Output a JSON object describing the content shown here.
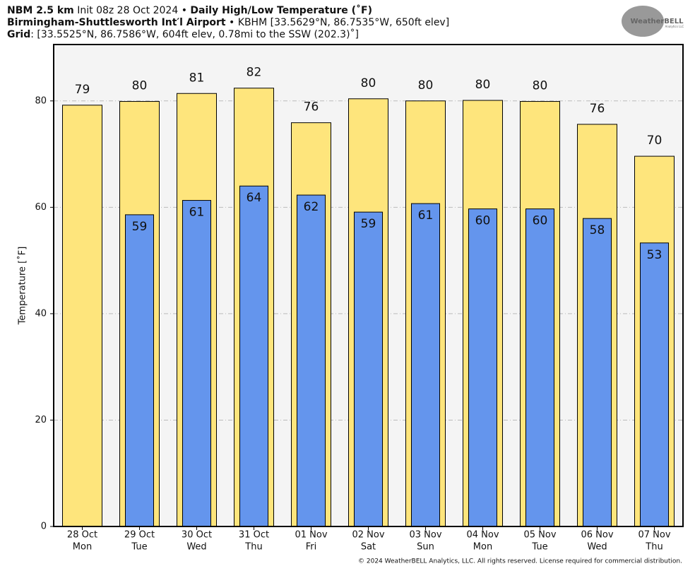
{
  "chart_data": {
    "type": "bar",
    "header": [
      [
        "NBM 2.5 km",
        "Init 08z 28 Oct 2024",
        "•",
        "Daily High/Low Temperature (˚F)"
      ],
      [
        "Birmingham-Shuttlesworth Int′l Airport",
        "•",
        "KBHM [33.5629°N, 86.7535°W, 650ft elev]"
      ],
      [
        "Grid",
        ": [33.5525°N, 86.7586°W, 604ft elev, 0.78mi to the SSW (202.3)˚]"
      ]
    ],
    "logo": "WeatherBELL",
    "logo_sub": "Analytics LLC",
    "footer": "© 2024 WeatherBELL Analytics, LLC. All rights reserved. License required for commercial distribution.",
    "ylabel": "Temperature [˚F]",
    "categories": [
      "28 Oct",
      "29 Oct",
      "30 Oct",
      "31 Oct",
      "01 Nov",
      "02 Nov",
      "03 Nov",
      "04 Nov",
      "05 Nov",
      "06 Nov",
      "07 Nov"
    ],
    "weekdays": [
      "Mon",
      "Tue",
      "Wed",
      "Thu",
      "Fri",
      "Sat",
      "Sun",
      "Mon",
      "Tue",
      "Wed",
      "Thu"
    ],
    "series": [
      {
        "name": "High",
        "color": "#fee57c",
        "values": [
          79.2,
          79.9,
          81.4,
          82.4,
          75.9,
          80.4,
          80.0,
          80.1,
          79.9,
          75.6,
          69.6
        ],
        "value_labels": [
          "79",
          "80",
          "81",
          "82",
          "76",
          "80",
          "80",
          "80",
          "80",
          "76",
          "70"
        ]
      },
      {
        "name": "Low",
        "color": "#6495ed",
        "values": [
          null,
          58.6,
          61.3,
          64.0,
          62.3,
          59.1,
          60.7,
          59.7,
          59.7,
          57.9,
          53.3
        ],
        "value_labels": [
          null,
          "59",
          "61",
          "64",
          "62",
          "59",
          "61",
          "60",
          "60",
          "58",
          "53"
        ]
      }
    ],
    "ylim": [
      0,
      90.6
    ],
    "yticks": [
      0,
      20,
      40,
      60,
      80
    ],
    "grid": true
  }
}
